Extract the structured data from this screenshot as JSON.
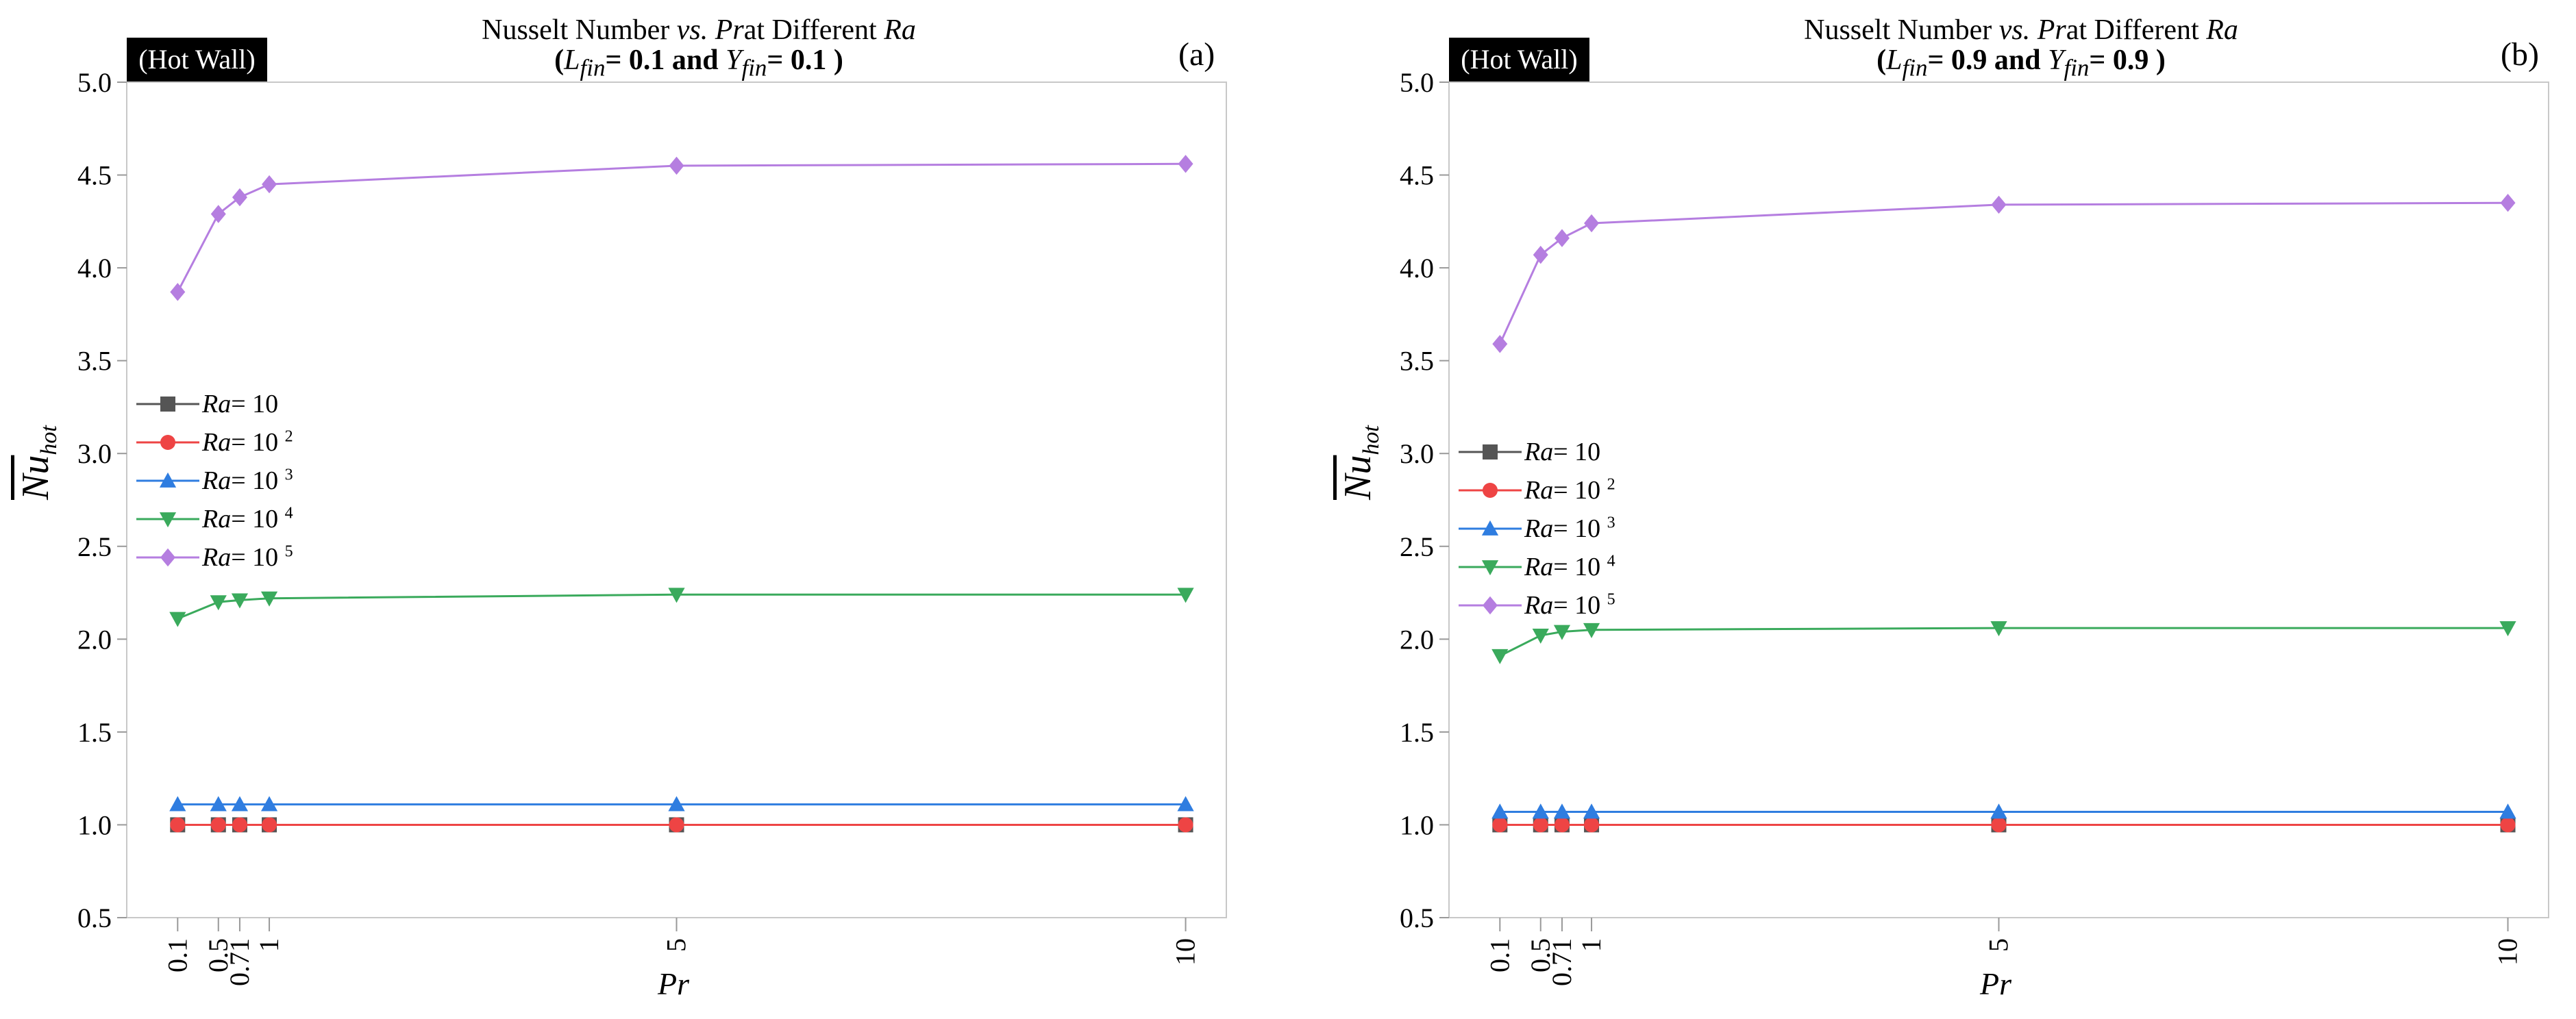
{
  "chart_data": [
    {
      "type": "line",
      "panel_letter": "(a)",
      "tag": "(Hot Wall)",
      "title_line1": "Nusselt Number vs. Prat Different Ra",
      "title_line2": "(L fin= 0.1 and Y fin= 0.1 )",
      "title_parts": {
        "a": "Nusselt Number ",
        "vs": "vs.",
        "b": " ",
        "pr": "Pr",
        "c": "at Different ",
        "ra": "Ra"
      },
      "title2_parts": {
        "open": "(",
        "L": "L",
        "Lsub": "fin",
        "mid": "= 0.1 and ",
        "Y": "Y",
        "Ysub": "fin",
        "end": "= 0.1 )"
      },
      "xlabel": "Pr",
      "ylabel": "Nu hot",
      "ylim": [
        0.5,
        5.0
      ],
      "xlim": [
        -0.4,
        10.4
      ],
      "yticks": [
        "0.5",
        "1.0",
        "1.5",
        "2.0",
        "2.5",
        "3.0",
        "3.5",
        "4.0",
        "4.5",
        "5.0"
      ],
      "xticks": [
        "0.1",
        "0.5",
        "0.71",
        "1",
        "5",
        "10"
      ],
      "x": [
        0.1,
        0.5,
        0.71,
        1,
        5,
        10
      ],
      "series": [
        {
          "name": "Ra= 10",
          "base": "Ra",
          "exp": "",
          "tail": "= 10",
          "color": "#555555",
          "marker": "square",
          "values": [
            1.0,
            1.0,
            1.0,
            1.0,
            1.0,
            1.0
          ]
        },
        {
          "name": "Ra= 10 2",
          "base": "Ra",
          "exp": "2",
          "tail": "= 10 ",
          "color": "#ee4444",
          "marker": "circle",
          "values": [
            1.0,
            1.0,
            1.0,
            1.0,
            1.0,
            1.0
          ]
        },
        {
          "name": "Ra= 10 3",
          "base": "Ra",
          "exp": "3",
          "tail": "= 10 ",
          "color": "#2f7de0",
          "marker": "triangle-up",
          "values": [
            1.11,
            1.11,
            1.11,
            1.11,
            1.11,
            1.11
          ]
        },
        {
          "name": "Ra= 10 4",
          "base": "Ra",
          "exp": "4",
          "tail": "= 10 ",
          "color": "#3aaa5c",
          "marker": "triangle-down",
          "values": [
            2.11,
            2.2,
            2.21,
            2.22,
            2.24,
            2.24
          ]
        },
        {
          "name": "Ra= 10 5",
          "base": "Ra",
          "exp": "5",
          "tail": "= 10 ",
          "color": "#b57ee0",
          "marker": "diamond",
          "values": [
            3.87,
            4.29,
            4.38,
            4.45,
            4.55,
            4.56
          ]
        }
      ],
      "legend": "left"
    },
    {
      "type": "line",
      "panel_letter": "(b)",
      "tag": "(Hot Wall)",
      "title_line1": "Nusselt Number vs. Prat Different Ra",
      "title_line2": "(L fin= 0.9 and Y fin= 0.9 )",
      "title_parts": {
        "a": "Nusselt Number ",
        "vs": "vs.",
        "b": " ",
        "pr": "Pr",
        "c": "at Different ",
        "ra": "Ra"
      },
      "title2_parts": {
        "open": "(",
        "L": "L",
        "Lsub": "fin",
        "mid": "= 0.9 and ",
        "Y": "Y",
        "Ysub": "fin",
        "end": "= 0.9 )"
      },
      "xlabel": "Pr",
      "ylabel": "Nu hot",
      "ylim": [
        0.5,
        5.0
      ],
      "xlim": [
        -0.4,
        10.4
      ],
      "yticks": [
        "0.5",
        "1.0",
        "1.5",
        "2.0",
        "2.5",
        "3.0",
        "3.5",
        "4.0",
        "4.5",
        "5.0"
      ],
      "xticks": [
        "0.1",
        "0.5",
        "0.71",
        "1",
        "5",
        "10"
      ],
      "x": [
        0.1,
        0.5,
        0.71,
        1,
        5,
        10
      ],
      "series": [
        {
          "name": "Ra= 10",
          "base": "Ra",
          "exp": "",
          "tail": "= 10",
          "color": "#555555",
          "marker": "square",
          "values": [
            1.0,
            1.0,
            1.0,
            1.0,
            1.0,
            1.0
          ]
        },
        {
          "name": "Ra= 10 2",
          "base": "Ra",
          "exp": "2",
          "tail": "= 10 ",
          "color": "#ee4444",
          "marker": "circle",
          "values": [
            1.0,
            1.0,
            1.0,
            1.0,
            1.0,
            1.0
          ]
        },
        {
          "name": "Ra= 10 3",
          "base": "Ra",
          "exp": "3",
          "tail": "= 10 ",
          "color": "#2f7de0",
          "marker": "triangle-up",
          "values": [
            1.07,
            1.07,
            1.07,
            1.07,
            1.07,
            1.07
          ]
        },
        {
          "name": "Ra= 10 4",
          "base": "Ra",
          "exp": "4",
          "tail": "= 10 ",
          "color": "#3aaa5c",
          "marker": "triangle-down",
          "values": [
            1.91,
            2.02,
            2.04,
            2.05,
            2.06,
            2.06
          ]
        },
        {
          "name": "Ra= 10 5",
          "base": "Ra",
          "exp": "5",
          "tail": "= 10 ",
          "color": "#b57ee0",
          "marker": "diamond",
          "values": [
            3.59,
            4.07,
            4.16,
            4.24,
            4.34,
            4.35
          ]
        }
      ],
      "legend": "left"
    }
  ]
}
